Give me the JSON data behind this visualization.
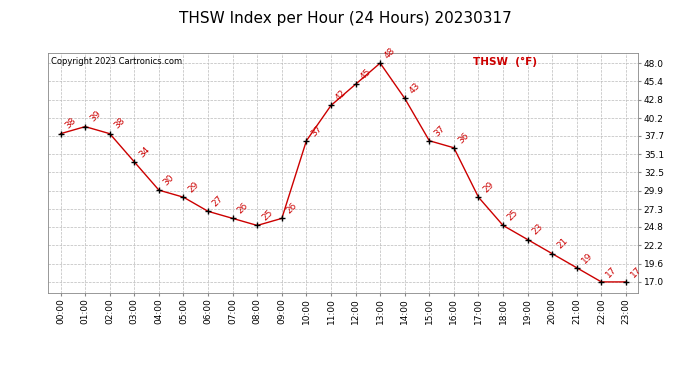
{
  "title": "THSW Index per Hour (24 Hours) 20230317",
  "copyright": "Copyright 2023 Cartronics.com",
  "legend_label": "THSW  (°F)",
  "hours": [
    0,
    1,
    2,
    3,
    4,
    5,
    6,
    7,
    8,
    9,
    10,
    11,
    12,
    13,
    14,
    15,
    16,
    17,
    18,
    19,
    20,
    21,
    22,
    23
  ],
  "values": [
    38,
    39,
    38,
    34,
    30,
    29,
    27,
    26,
    25,
    26,
    37,
    42,
    45,
    48,
    43,
    37,
    36,
    29,
    25,
    23,
    21,
    19,
    17,
    17
  ],
  "xlabels": [
    "00:00",
    "01:00",
    "02:00",
    "03:00",
    "04:00",
    "05:00",
    "06:00",
    "07:00",
    "08:00",
    "09:00",
    "10:00",
    "11:00",
    "12:00",
    "13:00",
    "14:00",
    "15:00",
    "16:00",
    "17:00",
    "18:00",
    "19:00",
    "20:00",
    "21:00",
    "22:00",
    "23:00"
  ],
  "yticks": [
    17.0,
    19.6,
    22.2,
    24.8,
    27.3,
    29.9,
    32.5,
    35.1,
    37.7,
    40.2,
    42.8,
    45.4,
    48.0
  ],
  "ylim": [
    15.5,
    49.5
  ],
  "line_color": "#cc0000",
  "marker_color": "#000000",
  "grid_color": "#bbbbbb",
  "bg_color": "#ffffff",
  "title_fontsize": 11,
  "tick_fontsize": 6.5,
  "annotation_fontsize": 6.5,
  "copyright_fontsize": 6,
  "legend_fontsize": 7.5
}
